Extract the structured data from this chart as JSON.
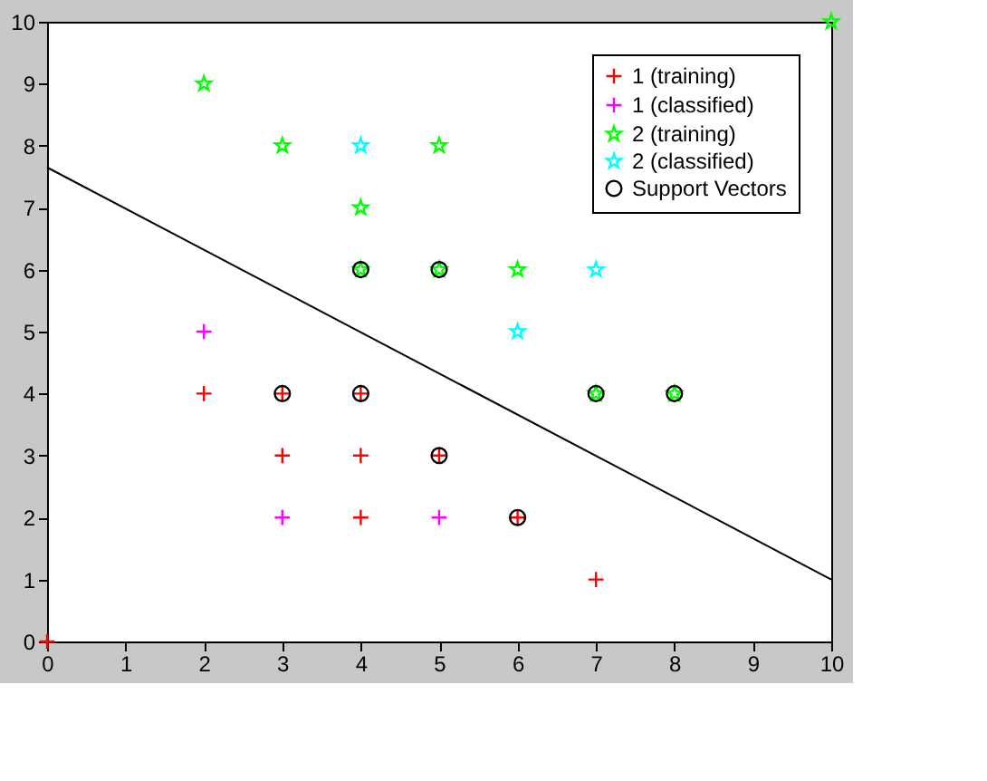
{
  "chart_data": {
    "type": "scatter",
    "xlim": [
      0,
      10
    ],
    "ylim": [
      0,
      10
    ],
    "xticks": [
      0,
      1,
      2,
      3,
      4,
      5,
      6,
      7,
      8,
      9,
      10
    ],
    "yticks": [
      0,
      1,
      2,
      3,
      4,
      5,
      6,
      7,
      8,
      9,
      10
    ],
    "grid": false,
    "legend": "top right",
    "series": [
      {
        "name": "1 (training)",
        "color": "#ff0000",
        "marker": "cross",
        "x": [
          0,
          2,
          3,
          4,
          3,
          4,
          5,
          4,
          6,
          7
        ],
        "values": [
          0,
          4,
          4,
          4,
          3,
          3,
          3,
          2,
          2,
          1
        ]
      },
      {
        "name": "1 (classified)",
        "color": "#ff00ff",
        "marker": "cross",
        "x": [
          2,
          3,
          5
        ],
        "values": [
          5,
          2,
          2
        ]
      },
      {
        "name": "2 (training)",
        "color": "#00ff00",
        "marker": "star",
        "x": [
          2,
          3,
          5,
          4,
          4,
          5,
          6,
          7,
          8,
          10
        ],
        "values": [
          9,
          8,
          8,
          7,
          6,
          6,
          6,
          4,
          4,
          10
        ]
      },
      {
        "name": "2 (classified)",
        "color": "#00ffff",
        "marker": "star",
        "x": [
          4,
          7,
          6
        ],
        "values": [
          8,
          6,
          5
        ]
      },
      {
        "name": "Support Vectors",
        "color": "#000000",
        "marker": "circle",
        "x": [
          3,
          4,
          5,
          6,
          4,
          5,
          7,
          8
        ],
        "values": [
          4,
          4,
          3,
          2,
          6,
          6,
          4,
          4
        ]
      },
      {
        "type": "line",
        "color": "#000000",
        "x": [
          0,
          10
        ],
        "values": [
          7.65,
          1.0
        ]
      }
    ]
  }
}
